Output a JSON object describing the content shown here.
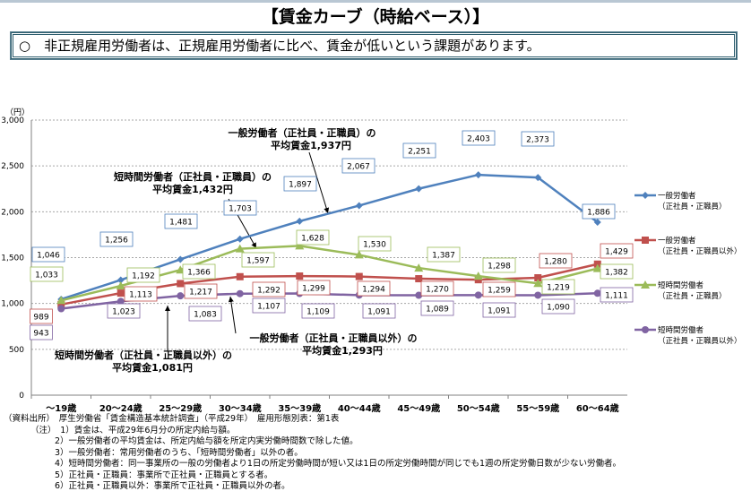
{
  "title": "【賃金カーブ（時給ベース）】",
  "lead": "○　非正規雇用労働者は、正規雇用労働者に比べ、賃金が低いという課題があります。",
  "chart_data": {
    "type": "line",
    "ylabel": "（円）",
    "ylim": [
      0,
      3000
    ],
    "yticks": [
      0,
      500,
      1000,
      1500,
      2000,
      2500,
      3000
    ],
    "ytick_labels": [
      "0",
      "500",
      "1,000",
      "1,500",
      "2,000",
      "2,500",
      "3,000"
    ],
    "grid": "horizontal dashed",
    "legend_position": "right",
    "categories": [
      "～19歳",
      "20～24歳",
      "25～29歳",
      "30～34歳",
      "35～39歳",
      "40～44歳",
      "45～49歳",
      "50～54歳",
      "55～59歳",
      "60～64歳"
    ],
    "series": [
      {
        "name_line1": "一般労働者",
        "name_line2": "（正社員・正職員）",
        "color": "#4f81bd",
        "marker": "diamond",
        "values": [
          1046,
          1256,
          1481,
          1703,
          1897,
          2067,
          2251,
          2403,
          2373,
          1886
        ]
      },
      {
        "name_line1": "一般労働者",
        "name_line2": "（正社員・正職員以外）",
        "color": "#c0504d",
        "marker": "square",
        "values": [
          989,
          1113,
          1217,
          1292,
          1299,
          1294,
          1270,
          1259,
          1280,
          1429
        ]
      },
      {
        "name_line1": "短時間労働者",
        "name_line2": "（正社員・正職員）",
        "color": "#9bbb59",
        "marker": "triangle",
        "values": [
          1033,
          1192,
          1366,
          1597,
          1628,
          1530,
          1387,
          1298,
          1219,
          1382
        ]
      },
      {
        "name_line1": "短時間労働者",
        "name_line2": "（正社員・正職員以外）",
        "color": "#8064a2",
        "marker": "circle",
        "values": [
          943,
          1023,
          1083,
          1107,
          1109,
          1091,
          1089,
          1091,
          1090,
          1111
        ]
      }
    ],
    "annotations": [
      {
        "line1": "一般労働者（正社員・正職員）の",
        "line2": "平均賃金1,937円"
      },
      {
        "line1": "短時間労働者（正社員・正職員）の",
        "line2": "平均賃金1,432円"
      },
      {
        "line1": "一般労働者（正社員・正職員以外）の",
        "line2": "平均賃金1,293円"
      },
      {
        "line1": "短時間労働者（正社員・正職員以外）の",
        "line2": "平均賃金1,081円"
      }
    ]
  },
  "notes": {
    "source": "（資料出所）　厚生労働省「賃金構造基本統計調査」（平成29年）　雇用形態別表：第1表",
    "items": [
      "（注）　1）賃金は、平成29年6月分の所定内給与額。",
      "2）一般労働者の平均賃金は、所定内給与額を所定内実労働時間数で除した値。",
      "3）一般労働者：常用労働者のうち、「短時間労働者」以外の者。",
      "4）短時間労働者：同一事業所の一般の労働者より1日の所定労働時間が短い又は1日の所定労働時間が同じでも1週の所定労働日数が少ない労働者。",
      "5）正社員・正職員：事業所で正社員・正職員とする者。",
      "6）正社員・正職員以外：事業所で正社員・正職員以外の者。"
    ]
  }
}
